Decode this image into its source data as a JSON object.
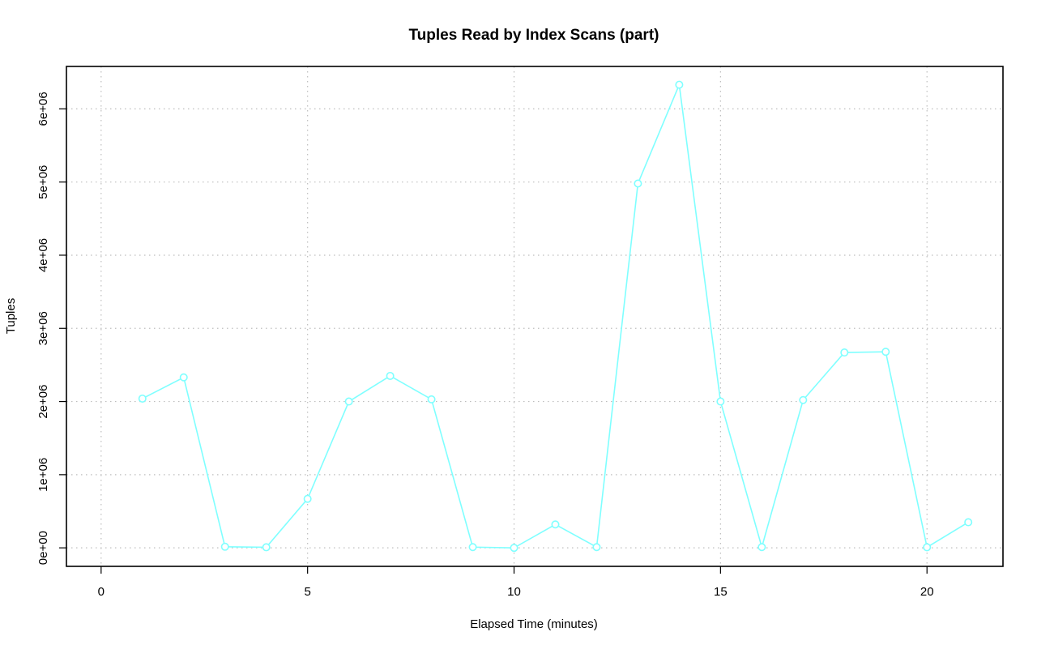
{
  "chart_data": {
    "type": "line",
    "title": "Tuples Read by Index Scans (part)",
    "xlabel": "Elapsed Time (minutes)",
    "ylabel": "Tuples",
    "xlim": [
      -0.84,
      21.84
    ],
    "ylim": [
      -253000,
      6580000
    ],
    "x_ticks": [
      0,
      5,
      10,
      15,
      20
    ],
    "x_tick_labels": [
      "0",
      "5",
      "10",
      "15",
      "20"
    ],
    "y_ticks": [
      0,
      1000000,
      2000000,
      3000000,
      4000000,
      5000000,
      6000000
    ],
    "y_tick_labels": [
      "0e+00",
      "1e+06",
      "2e+06",
      "3e+06",
      "4e+06",
      "5e+06",
      "6e+06"
    ],
    "grid": true,
    "line_color": "#7fffff",
    "series": [
      {
        "x": [
          1,
          2,
          3,
          4,
          5,
          6,
          7,
          8,
          9,
          10,
          11,
          12,
          13,
          14,
          15,
          16,
          17,
          18,
          19,
          20,
          21
        ],
        "values": [
          2040000,
          2330000,
          15000,
          8000,
          670000,
          2000000,
          2350000,
          2030000,
          10000,
          0,
          320000,
          10000,
          4980000,
          6330000,
          2000000,
          10000,
          2020000,
          2670000,
          2680000,
          8000,
          350000
        ]
      }
    ]
  }
}
